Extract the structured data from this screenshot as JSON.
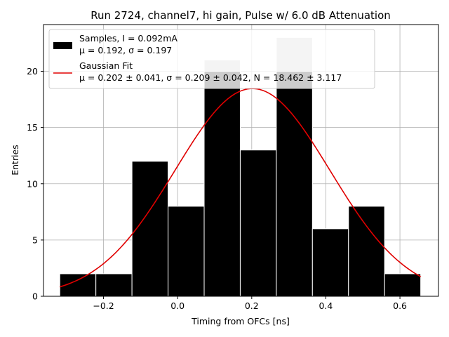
{
  "chart_data": {
    "type": "bar",
    "title": "Run 2724, channel7, hi gain, Pulse w/ 6.0 dB Attenuation",
    "xlabel": "Timing from OFCs [ns]",
    "ylabel": "Entries",
    "xlim": [
      -0.362,
      0.704
    ],
    "ylim": [
      0,
      24.15
    ],
    "xticks": [
      -0.2,
      0.0,
      0.2,
      0.4,
      0.6
    ],
    "xtick_labels": [
      "−0.2",
      "0.0",
      "0.2",
      "0.4",
      "0.6"
    ],
    "yticks": [
      0,
      5,
      10,
      15,
      20
    ],
    "ytick_labels": [
      "0",
      "5",
      "10",
      "15",
      "20"
    ],
    "grid": true,
    "legend_position": "upper-left",
    "bins": {
      "edges": [
        -0.318,
        -0.2206,
        -0.1232,
        -0.0258,
        0.0716,
        0.169,
        0.2664,
        0.3638,
        0.4612,
        0.5586,
        0.656
      ],
      "counts": [
        2,
        2,
        12,
        8,
        21,
        13,
        23,
        6,
        8,
        2
      ],
      "underlay_counts": [
        2,
        2,
        12,
        8,
        21,
        13,
        23,
        6,
        8,
        2
      ],
      "overlay_counts": [
        2,
        2,
        12,
        8,
        20,
        13,
        20,
        6,
        8,
        2
      ],
      "underlay_color": "#c8c8c8",
      "overlay_color": "#000000",
      "edge_color": "#ffffff"
    },
    "fit": {
      "type": "gaussian",
      "mu": 0.202,
      "sigma": 0.209,
      "N": 18.462,
      "x_range": [
        -0.318,
        0.656
      ],
      "color": "#e00000"
    },
    "legend": [
      {
        "kind": "patch",
        "color": "#000000",
        "line1": "Samples, I = 0.092mA",
        "line2": "μ = 0.192, σ = 0.197"
      },
      {
        "kind": "line",
        "color": "#e00000",
        "line1": "Gaussian Fit",
        "line2": "μ = 0.202 ± 0.041, σ = 0.209 ± 0.042, N = 18.462 ± 3.117"
      }
    ]
  }
}
